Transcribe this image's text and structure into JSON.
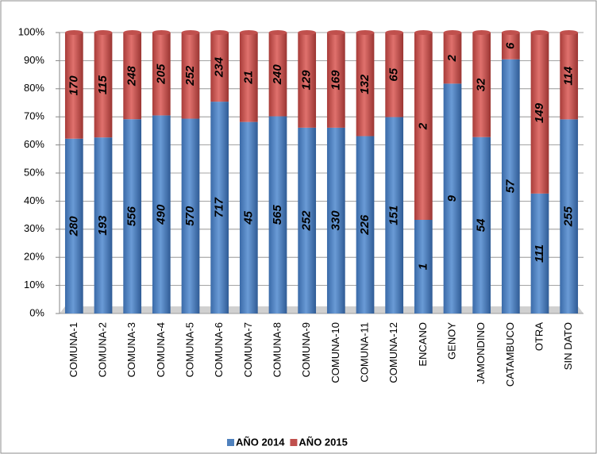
{
  "chart_data": {
    "type": "bar",
    "stacking": "percent",
    "categories": [
      "COMUNA-1",
      "COMUNA-2",
      "COMUNA-3",
      "COMUNA-4",
      "COMUNA-5",
      "COMUNA-6",
      "COMUNA-7",
      "COMUNA-8",
      "COMUNA-9",
      "COMUNA-10",
      "COMUNA-11",
      "COMUNA-12",
      "ENCANO",
      "GENOY",
      "JAMONDINO",
      "CATAMBUCO",
      "OTRA",
      "SIN DATO"
    ],
    "series": [
      {
        "name": "AÑO 2014",
        "color": "#4f81bd",
        "values": [
          280,
          193,
          556,
          490,
          570,
          717,
          45,
          565,
          252,
          330,
          226,
          151,
          1,
          9,
          54,
          57,
          111,
          255
        ]
      },
      {
        "name": "AÑO 2015",
        "color": "#c0504d",
        "values": [
          170,
          115,
          248,
          205,
          252,
          234,
          21,
          240,
          129,
          169,
          132,
          65,
          2,
          2,
          32,
          6,
          149,
          114
        ]
      }
    ],
    "ylim": [
      0,
      100
    ],
    "yticks": [
      {
        "value": 0,
        "label": "0%"
      },
      {
        "value": 10,
        "label": "10%"
      },
      {
        "value": 20,
        "label": "20%"
      },
      {
        "value": 30,
        "label": "30%"
      },
      {
        "value": 40,
        "label": "40%"
      },
      {
        "value": 50,
        "label": "50%"
      },
      {
        "value": 60,
        "label": "60%"
      },
      {
        "value": 70,
        "label": "70%"
      },
      {
        "value": 80,
        "label": "80%"
      },
      {
        "value": 90,
        "label": "90%"
      },
      {
        "value": 100,
        "label": "100%"
      }
    ],
    "grid": true,
    "legend": "bottom"
  }
}
